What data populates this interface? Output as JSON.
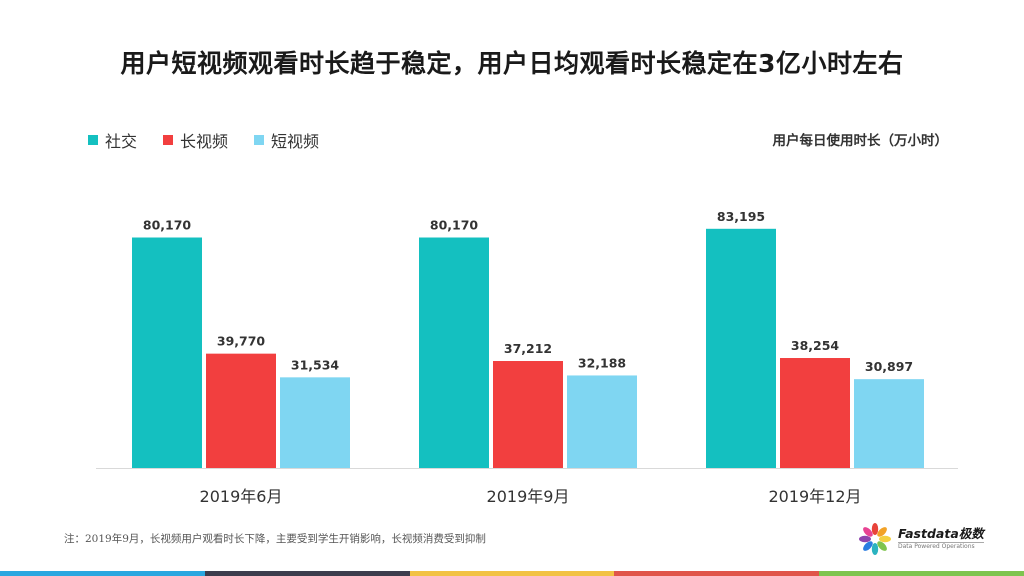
{
  "title": "用户短视频观看时长趋于稳定，用户日均观看时长稳定在3亿小时左右",
  "unit_label": "用户每日使用时长（万小时）",
  "note": "注：2019年9月，长视频用户观看时长下降，主要受到学生开销影响，长视频消费受到抑制",
  "logo": {
    "name": "Fastdata极数",
    "tagline": "Data Powered Operations"
  },
  "colors": {
    "social": "#14c0c0",
    "long_video": "#f23f3f",
    "short_video": "#7fd6f2",
    "axis": "#d9d9d9",
    "bottom_bar": [
      "#2aa7e0",
      "#3c3c4c",
      "#f2c244",
      "#e0554a",
      "#7ec44e"
    ]
  },
  "chart_data": {
    "type": "bar",
    "categories": [
      "2019年6月",
      "2019年9月",
      "2019年12月"
    ],
    "series": [
      {
        "name": "社交",
        "values": [
          80170,
          80170,
          83195
        ],
        "labels": [
          "80,170",
          "80,170",
          "83,195"
        ]
      },
      {
        "name": "长视频",
        "values": [
          39770,
          37212,
          38254
        ],
        "labels": [
          "39,770",
          "37,212",
          "38,254"
        ]
      },
      {
        "name": "短视频",
        "values": [
          31534,
          32188,
          30897
        ],
        "labels": [
          "31,534",
          "32,188",
          "30,897"
        ]
      }
    ],
    "ylabel": "用户每日使用时长（万小时）",
    "ylim": [
      0,
      100000
    ],
    "grid": false,
    "legend_position": "top-left"
  }
}
